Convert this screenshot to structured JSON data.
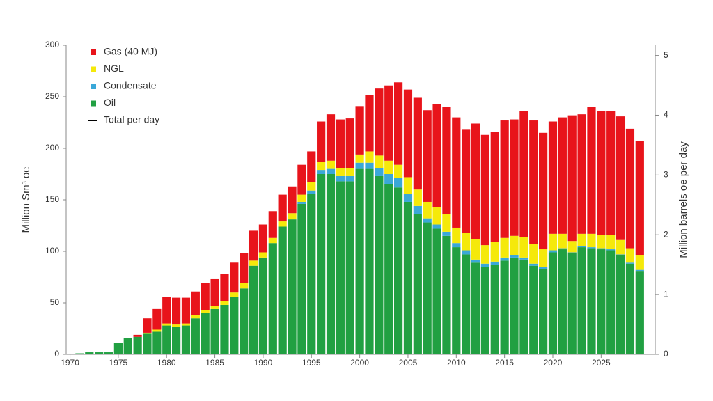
{
  "chart_data": {
    "type": "stacked-bar",
    "x": [
      1971,
      1972,
      1973,
      1974,
      1975,
      1976,
      1977,
      1978,
      1979,
      1980,
      1981,
      1982,
      1983,
      1984,
      1985,
      1986,
      1987,
      1988,
      1989,
      1990,
      1991,
      1992,
      1993,
      1994,
      1995,
      1996,
      1997,
      1998,
      1999,
      2000,
      2001,
      2002,
      2003,
      2004,
      2005,
      2006,
      2007,
      2008,
      2009,
      2010,
      2011,
      2012,
      2013,
      2014,
      2015,
      2016,
      2017,
      2018,
      2019,
      2020,
      2021,
      2022,
      2023,
      2024,
      2025,
      2026,
      2027,
      2028,
      2029
    ],
    "series": [
      {
        "name": "Oil",
        "color": "#21a042",
        "values": [
          1,
          2,
          2,
          2,
          11,
          16,
          17,
          20,
          22,
          28,
          27,
          28,
          35,
          40,
          44,
          48,
          56,
          64,
          86,
          94,
          108,
          124,
          131,
          146,
          156,
          175,
          175,
          168,
          168,
          180,
          180,
          173,
          165,
          162,
          148,
          136,
          128,
          122,
          115,
          104,
          97,
          89,
          85,
          87,
          91,
          94,
          92,
          86,
          83,
          99,
          102,
          98,
          104,
          103,
          102,
          101,
          96,
          88,
          81
        ]
      },
      {
        "name": "Condensate",
        "color": "#3aa8d8",
        "values": [
          0,
          0,
          0,
          0,
          0,
          0,
          0,
          0,
          0,
          0,
          0,
          0,
          0,
          0,
          0,
          0,
          0,
          0,
          0,
          0,
          0,
          0,
          0,
          2,
          3,
          4,
          5,
          5,
          5,
          6,
          6,
          8,
          10,
          9,
          8,
          8,
          4,
          4,
          4,
          4,
          4,
          3,
          3,
          3,
          3,
          2,
          2,
          2,
          2,
          2,
          1,
          1,
          1,
          1,
          1,
          1,
          1,
          1,
          1
        ]
      },
      {
        "name": "NGL",
        "color": "#f5e90a",
        "values": [
          0,
          0,
          0,
          0,
          0,
          0,
          0,
          1,
          2,
          2,
          2,
          2,
          3,
          3,
          3,
          4,
          4,
          5,
          5,
          5,
          5,
          5,
          6,
          7,
          8,
          8,
          8,
          8,
          8,
          8,
          11,
          12,
          13,
          13,
          16,
          16,
          16,
          17,
          17,
          15,
          17,
          20,
          18,
          19,
          19,
          19,
          20,
          19,
          17,
          16,
          14,
          11,
          12,
          13,
          13,
          14,
          14,
          14,
          14
        ]
      },
      {
        "name": "Gas (40 MJ)",
        "color": "#e8141b",
        "values": [
          0,
          0,
          0,
          0,
          0,
          0,
          2,
          14,
          20,
          26,
          26,
          25,
          23,
          26,
          26,
          26,
          29,
          29,
          29,
          27,
          26,
          26,
          26,
          29,
          30,
          39,
          45,
          47,
          48,
          47,
          55,
          65,
          73,
          80,
          85,
          89,
          89,
          100,
          104,
          107,
          100,
          112,
          107,
          107,
          114,
          113,
          122,
          120,
          113,
          109,
          113,
          122,
          116,
          123,
          120,
          120,
          120,
          116,
          111
        ]
      },
      {
        "name": "Total per day",
        "color": "#000000",
        "axis": "y2",
        "values": [
          null,
          null,
          null,
          null,
          null,
          null,
          null,
          null,
          null,
          null,
          null,
          null,
          null,
          null,
          null,
          null,
          null,
          null,
          null,
          null,
          null,
          null,
          null,
          null,
          null,
          null,
          null,
          null,
          null,
          null,
          null,
          null,
          null,
          null,
          null,
          null,
          null,
          null,
          null,
          null,
          null,
          null,
          null,
          null,
          null,
          null,
          null,
          null,
          null,
          null,
          null,
          null,
          null,
          null,
          null,
          null,
          null,
          null,
          null
        ]
      }
    ],
    "y_label": "Million Sm³ oe",
    "y2_label": "Million barrels oe per day",
    "xlim": [
      1969.6,
      2030.6
    ],
    "xticks": [
      1970,
      1975,
      1980,
      1985,
      1990,
      1995,
      2000,
      2005,
      2010,
      2015,
      2020,
      2025
    ],
    "ylim": [
      0,
      300
    ],
    "yticks": [
      0,
      50,
      100,
      150,
      200,
      250,
      300
    ],
    "y2lim": [
      0,
      5.17
    ],
    "y2ticks": [
      0,
      1,
      2,
      3,
      4,
      5
    ],
    "legend": "upper-left"
  }
}
